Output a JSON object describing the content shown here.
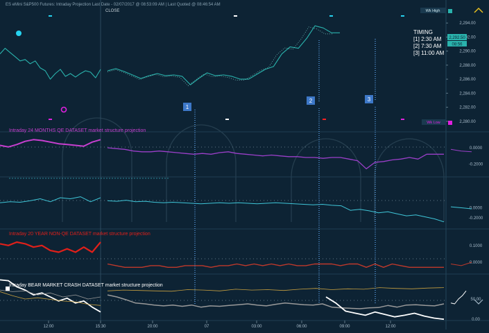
{
  "header": {
    "title": "ES eMini S&P500 Futures: Intraday Projection Last Date - 02/07/2017 @ 08:53:09 AM | Last Quoted @ 08:46:54 AM",
    "close_label": "CLOSE"
  },
  "timing": {
    "title": "TIMING",
    "items": [
      "[1] 2:30 AM",
      "[2] 7:30 AM",
      "[3] 11:00 AM"
    ]
  },
  "markers": [
    "1",
    "2",
    "3"
  ],
  "legend": {
    "wk_high": "Wk High",
    "wk_low": "Wk Low"
  },
  "colors": {
    "background": "#0d2334",
    "price": "#2ab3ad",
    "qe24": "#9b3fc9",
    "qe24_projection": "#c83fd0",
    "aux_cyan": "#3fc6d8",
    "nonqe": "#c0392b",
    "nonqe_projection": "#e0201a",
    "bear": "#ffffff",
    "bear_projection": "#9a9a9a",
    "bear_gold": "#c8a040",
    "marker_box": "#3d78c8"
  },
  "chart_data": [
    {
      "type": "line",
      "name": "price",
      "title": "",
      "y_ticks": [
        "2,294.00",
        "2,292.00",
        "2,290.00",
        "2,288.00",
        "2,286.00",
        "2,284.00",
        "2,282.00",
        "2,280.00"
      ],
      "ylim": [
        2278.5,
        2295.5
      ],
      "x_ticks": [
        "12:00",
        "15:30",
        "20:00",
        "07",
        "03:00",
        "06:00",
        "09:00",
        "12:00"
      ],
      "price_tags": [
        "2,292.50",
        "08:56"
      ],
      "series": [
        {
          "values": [
            2289.6,
            2290.4,
            2289.8,
            2289.2,
            2288.6,
            2288.8,
            2288.2,
            2288.6,
            2287.6,
            2287.2,
            2286.0,
            2286.8,
            2287.4,
            2286.4,
            2286.8,
            2286.3,
            2286.8,
            2287.2,
            2287.0,
            2286.2,
            2287.4
          ],
          "values2": [
            2287.2,
            2287.5,
            2287.1,
            2286.6,
            2286.1,
            2286.5,
            2286.8,
            2286.5,
            2286.6,
            2286.4,
            2285.2,
            2286.1,
            2286.9,
            2286.5,
            2286.6,
            2286.4,
            2286.0,
            2286.0,
            2286.7,
            2287.4,
            2287.8,
            2289.6,
            2290.6,
            2290.4,
            2291.8,
            2293.6,
            2293.3,
            2292.6,
            2292.6
          ]
        }
      ]
    },
    {
      "type": "line",
      "name": "qe24",
      "title": "Intraday 24 MONTHS QE DATASET market structure projection",
      "y_ticks": [
        "0.0000",
        "-0.2000"
      ],
      "ylim": [
        -0.36,
        0.18
      ],
      "series": [
        {
          "values": [
            0.03,
            0.01,
            0.04,
            0.08,
            0.1,
            0.09,
            0.07,
            0.05,
            0.04,
            0.03,
            0.02,
            0.07,
            0.1
          ]
        },
        {
          "values": [
            0.0,
            -0.01,
            -0.02,
            -0.04,
            -0.05,
            -0.05,
            -0.04,
            -0.05,
            -0.06,
            -0.07,
            -0.08,
            -0.07,
            -0.08,
            -0.06,
            -0.05,
            -0.07,
            -0.08,
            -0.09,
            -0.1,
            -0.09,
            -0.1,
            -0.11,
            -0.11,
            -0.12,
            -0.12,
            -0.13,
            -0.12,
            -0.12,
            -0.14,
            -0.16,
            -0.26,
            -0.18,
            -0.17,
            -0.15,
            -0.14,
            -0.12,
            -0.14,
            -0.08,
            -0.08,
            -0.08
          ]
        },
        {
          "values": [
            -0.02,
            -0.04,
            -0.05
          ]
        }
      ]
    },
    {
      "type": "line",
      "name": "aux",
      "title": "",
      "y_ticks": [
        "0.0000",
        "-0.2000"
      ],
      "ylim": [
        -0.42,
        0.6
      ],
      "series": [
        {
          "values": [
            0.1,
            0.12,
            0.11,
            0.14,
            0.18,
            0.12,
            0.2,
            0.18,
            0.22,
            0.12,
            0.2
          ]
        },
        {
          "values": [
            0.14,
            0.13,
            0.15,
            0.12,
            0.13,
            0.11,
            0.1,
            0.11,
            0.1,
            0.09,
            0.08,
            0.09,
            0.1,
            0.09,
            0.1,
            0.09,
            0.08,
            0.09,
            0.1,
            0.09,
            0.08,
            0.07,
            0.06,
            0.07,
            0.05,
            0.04,
            -0.05,
            -0.03,
            -0.06,
            -0.1,
            -0.08,
            -0.12,
            -0.16,
            -0.14,
            -0.18,
            -0.22,
            -0.28
          ]
        },
        {
          "values": [
            0.02,
            0.0,
            -0.02
          ]
        }
      ]
    },
    {
      "type": "line",
      "name": "nonqe",
      "title": "Intraday 20 YEAR NON-QE DATASET market structure projection",
      "y_ticks": [
        "0.1000",
        "0.0000"
      ],
      "ylim": [
        -0.07,
        0.19
      ],
      "series": [
        {
          "values": [
            0.11,
            0.1,
            0.12,
            0.11,
            0.09,
            0.1,
            0.07,
            0.06,
            0.08,
            0.06,
            0.09,
            0.06,
            0.12
          ]
        },
        {
          "values": [
            -0.01,
            -0.02,
            -0.03,
            -0.03,
            -0.03,
            -0.02,
            -0.02,
            -0.03,
            -0.03,
            -0.02,
            -0.02,
            -0.02,
            -0.03,
            -0.02,
            -0.02,
            -0.01,
            -0.02,
            -0.01,
            -0.02,
            -0.01,
            -0.02,
            -0.01,
            -0.02,
            -0.02,
            -0.01,
            -0.01,
            -0.01,
            -0.02,
            -0.01,
            -0.01,
            -0.03,
            -0.01,
            -0.03,
            -0.01,
            -0.02,
            -0.03,
            -0.03,
            -0.03,
            -0.03,
            -0.03
          ]
        },
        {
          "values": [
            -0.01,
            -0.02,
            0.0
          ]
        }
      ]
    },
    {
      "type": "line",
      "name": "bear",
      "title": "Intraday BEAR MARKET CRASH DATASET market structure projection",
      "y_ticks": [
        "50.00",
        "0.00"
      ],
      "ylim": [
        -3,
        108
      ],
      "series": [
        {
          "values": [
            97,
            95,
            80,
            72,
            60,
            65,
            55,
            45,
            52,
            40,
            45,
            30,
            18
          ]
        },
        {
          "values": [
            68,
            58,
            50,
            53,
            49,
            45,
            43,
            37,
            34
          ]
        },
        {
          "values": [
            72,
            68,
            70,
            60,
            65,
            55,
            60,
            50,
            55
          ]
        },
        {
          "values": [
            60,
            55,
            48,
            40,
            38,
            35,
            33,
            35,
            32,
            35,
            30,
            33,
            32,
            34,
            36,
            38,
            35,
            33,
            37,
            40,
            38,
            36,
            35,
            38,
            30,
            28,
            27,
            26,
            28,
            29,
            34,
            30,
            35,
            36,
            34,
            33,
            38
          ]
        },
        {
          "values": [
            70,
            72,
            71,
            70,
            69,
            73,
            72,
            70,
            74,
            72,
            73,
            71,
            74,
            76,
            73,
            75,
            74,
            78,
            76,
            75,
            77,
            78
          ]
        },
        {
          "values": [
            55,
            40,
            20,
            15,
            10,
            18,
            12,
            6,
            10,
            15,
            8,
            3,
            0
          ]
        },
        {
          "values": [
            40,
            38,
            50,
            58,
            70
          ]
        }
      ]
    }
  ]
}
